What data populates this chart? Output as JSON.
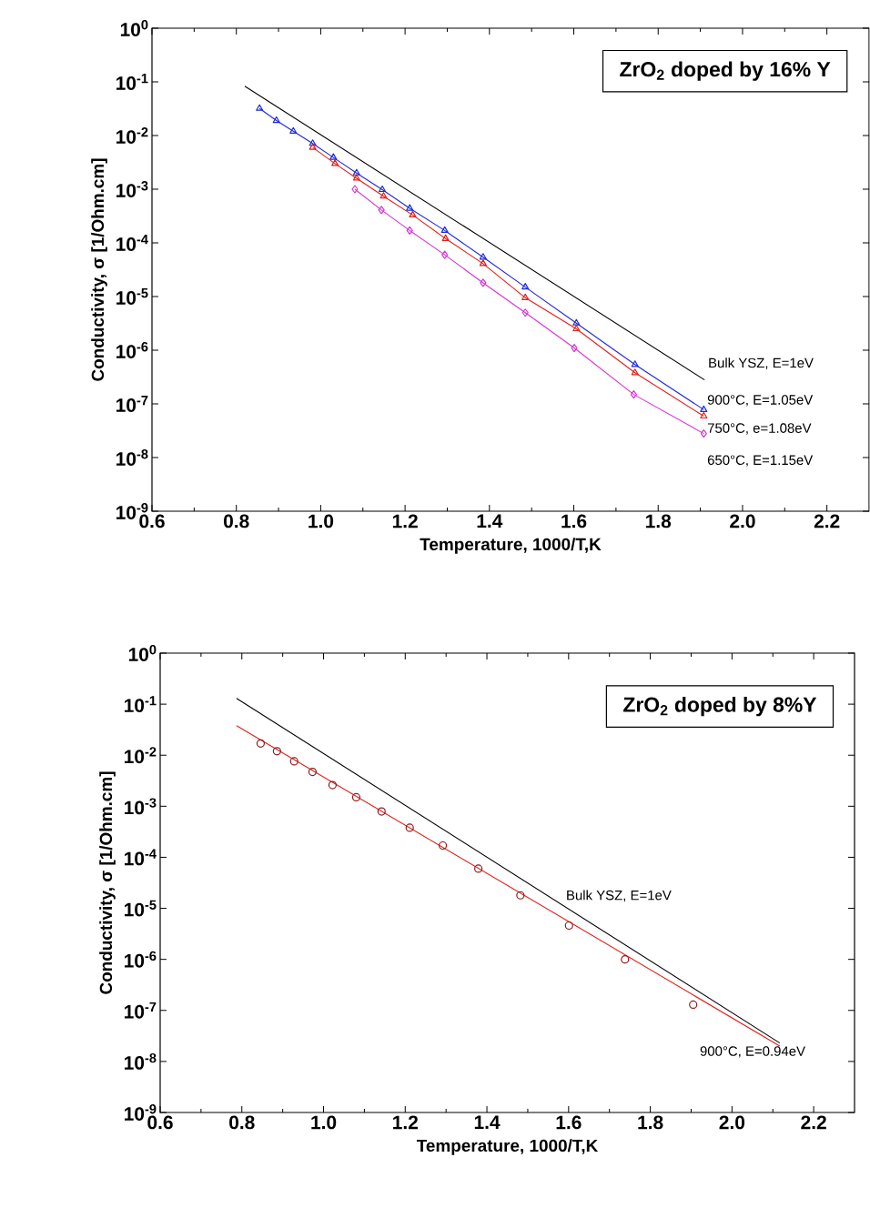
{
  "chart_data": [
    {
      "type": "line",
      "title": "ZrO$_{2}$ doped by 16% Y",
      "xlabel": "Temperature, 1000/T,K",
      "ylabel": "Conductivity, σ [1/Ohm.cm]",
      "log": "y",
      "xlim": [
        0.6,
        2.3
      ],
      "xticks": [
        {
          "value": 0.6,
          "label": "0.6"
        },
        {
          "value": 0.8,
          "label": "0.8"
        },
        {
          "value": 1,
          "label": "1.0"
        },
        {
          "value": 1.2,
          "label": "1.2"
        },
        {
          "value": 1.4,
          "label": "1.4"
        },
        {
          "value": 1.6,
          "label": "1.6"
        },
        {
          "value": 1.8,
          "label": "1.8"
        },
        {
          "value": 2,
          "label": "2.0"
        },
        {
          "value": 2.2,
          "label": "2.2"
        }
      ],
      "ylim": [
        1e-09,
        1
      ],
      "yticks": [
        {
          "value": 1,
          "label": "10$^{0}$"
        },
        {
          "value": 0.1,
          "label": "10$^{-1}$"
        },
        {
          "value": 0.01,
          "label": "10$^{-2}$"
        },
        {
          "value": 0.001,
          "label": "10$^{-3}$"
        },
        {
          "value": 0.0001,
          "label": "10$^{-4}$"
        },
        {
          "value": 1e-05,
          "label": "10$^{-5}$"
        },
        {
          "value": 1e-06,
          "label": "10$^{-6}$"
        },
        {
          "value": 1e-07,
          "label": "10$^{-7}$"
        },
        {
          "value": 1e-08,
          "label": "10$^{-8}$"
        },
        {
          "value": 1e-09,
          "label": "10$^{-9}$"
        }
      ],
      "series": [
        {
          "name": "Bulk YSZ, E=1eV",
          "color": "#000000",
          "marker": "none",
          "x": [
            0.82,
            1.91
          ],
          "values": [
            0.083,
            2.8e-07
          ]
        },
        {
          "name": "900°C, E=1.05eV",
          "color": "#1f2bd6",
          "marker": "triangle",
          "x": [
            0.855,
            0.895,
            0.935,
            0.981,
            1.03,
            1.085,
            1.146,
            1.211,
            1.294,
            1.385,
            1.485,
            1.606,
            1.745,
            1.908
          ],
          "values": [
            0.032,
            0.019,
            0.012,
            0.0071,
            0.0039,
            0.002,
            0.00098,
            0.00044,
            0.00017,
            5.4e-05,
            1.5e-05,
            3.2e-06,
            5.4e-07,
            7.8e-08
          ]
        },
        {
          "name": "750°C, e=1.08eV",
          "color": "#e0201c",
          "marker": "triangle",
          "x": [
            0.981,
            1.034,
            1.085,
            1.149,
            1.218,
            1.296,
            1.385,
            1.485,
            1.606,
            1.745,
            1.908
          ],
          "values": [
            0.006,
            0.003,
            0.0016,
            0.00074,
            0.00033,
            0.00012,
            4.1e-05,
            9.5e-06,
            2.5e-06,
            3.8e-07,
            5.9e-08
          ]
        },
        {
          "name": "650°C, E=1.15eV",
          "color": "#d633d6",
          "marker": "diamond",
          "x": [
            1.081,
            1.144,
            1.211,
            1.294,
            1.385,
            1.485,
            1.601,
            1.742,
            1.908
          ],
          "values": [
            0.001,
            0.00041,
            0.00017,
            6e-05,
            1.8e-05,
            5e-06,
            1.1e-06,
            1.5e-07,
            2.8e-08
          ]
        }
      ]
    },
    {
      "type": "line",
      "title": "ZrO$_{2}$ doped by 8%Y",
      "xlabel": "Temperature, 1000/T,K",
      "ylabel": "Conductivity, σ [1/Ohm.cm]",
      "log": "y",
      "xlim": [
        0.6,
        2.3
      ],
      "xticks": [
        {
          "value": 0.6,
          "label": "0.6"
        },
        {
          "value": 0.8,
          "label": "0.8"
        },
        {
          "value": 1,
          "label": "1.0"
        },
        {
          "value": 1.2,
          "label": "1.2"
        },
        {
          "value": 1.4,
          "label": "1.4"
        },
        {
          "value": 1.6,
          "label": "1.6"
        },
        {
          "value": 1.8,
          "label": "1.8"
        },
        {
          "value": 2,
          "label": "2.0"
        },
        {
          "value": 2.2,
          "label": "2.2"
        }
      ],
      "ylim": [
        1e-09,
        1
      ],
      "yticks": [
        {
          "value": 1,
          "label": "10$^{0}$"
        },
        {
          "value": 0.1,
          "label": "10$^{-1}$"
        },
        {
          "value": 0.01,
          "label": "10$^{-2}$"
        },
        {
          "value": 0.001,
          "label": "10$^{-3}$"
        },
        {
          "value": 0.0001,
          "label": "10$^{-4}$"
        },
        {
          "value": 1e-05,
          "label": "10$^{-5}$"
        },
        {
          "value": 1e-06,
          "label": "10$^{-6}$"
        },
        {
          "value": 1e-07,
          "label": "10$^{-7}$"
        },
        {
          "value": 1e-08,
          "label": "10$^{-8}$"
        },
        {
          "value": 1e-09,
          "label": "10$^{-9}$"
        }
      ],
      "series": [
        {
          "name": "Bulk YSZ, E=1eV",
          "color": "#000000",
          "marker": "none",
          "x": [
            0.787,
            2.117
          ],
          "values": [
            0.13,
            2.3e-08
          ]
        },
        {
          "name": "900°C, E=0.94eV",
          "color": "#e0201c",
          "marker": "none",
          "x": [
            0.787,
            2.117
          ],
          "values": [
            0.038,
            2e-08
          ]
        },
        {
          "type": "scatter",
          "color": "#8b1a1a",
          "marker": "circle",
          "x": [
            0.846,
            0.886,
            0.928,
            0.973,
            1.022,
            1.08,
            1.142,
            1.211,
            1.292,
            1.379,
            1.482,
            1.601,
            1.738,
            1.905
          ],
          "values": [
            0.017,
            0.012,
            0.0076,
            0.0047,
            0.0026,
            0.0015,
            0.00079,
            0.00038,
            0.00017,
            6e-05,
            1.8e-05,
            4.6e-06,
            1e-06,
            1.3e-07
          ]
        }
      ]
    }
  ]
}
